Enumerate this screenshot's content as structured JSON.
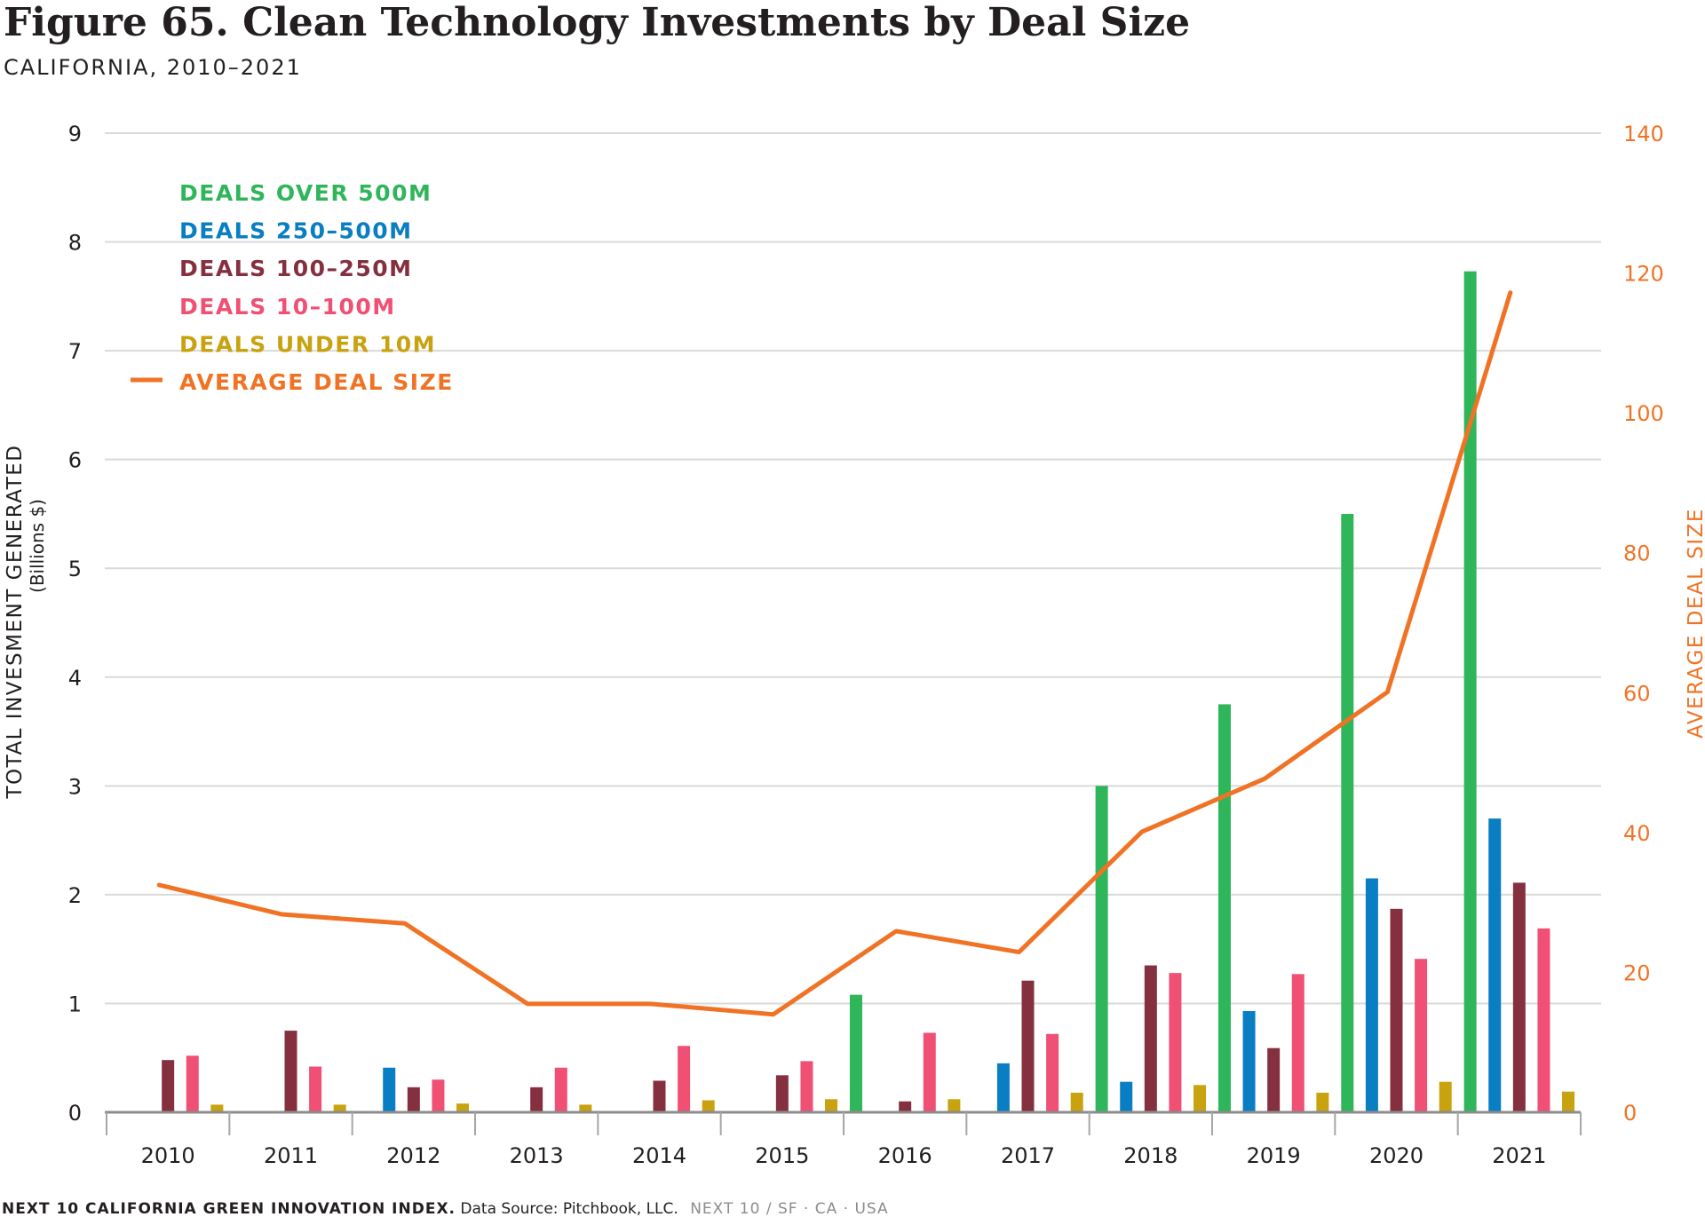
{
  "header": {
    "title": "Figure 65. Clean Technology Investments by Deal Size",
    "subtitle": "CALIFORNIA, 2010–2021"
  },
  "footer": {
    "org": "NEXT 10 CALIFORNIA GREEN INNOVATION INDEX.",
    "source": "Data Source: Pitchbook, LLC.",
    "brand": "NEXT 10  /  SF · CA · USA"
  },
  "chart_data": {
    "type": "bar",
    "title": "Figure 65. Clean Technology Investments by Deal Size",
    "subtitle": "CALIFORNIA, 2010–2021",
    "categories": [
      "2010",
      "2011",
      "2012",
      "2013",
      "2014",
      "2015",
      "2016",
      "2017",
      "2018",
      "2019",
      "2020",
      "2021"
    ],
    "ylabel": "TOTAL INVESMENT GENERATED",
    "ylabel_sub": "(Billions $)",
    "y2label": "AVERAGE DEAL SIZE",
    "ylim": [
      0,
      9
    ],
    "y2lim": [
      0,
      140
    ],
    "yticks": [
      0,
      1,
      2,
      3,
      4,
      5,
      6,
      7,
      8,
      9
    ],
    "y2ticks": [
      0,
      20,
      40,
      60,
      80,
      100,
      120,
      140
    ],
    "grid": true,
    "legend_position": "top-left",
    "series": [
      {
        "name": "DEALS OVER 500M",
        "type": "bar",
        "axis": "left",
        "color": "#2fb55a",
        "values": [
          null,
          null,
          null,
          null,
          null,
          null,
          1.08,
          null,
          3.0,
          3.75,
          5.5,
          7.73
        ]
      },
      {
        "name": "DEALS 250–500M",
        "type": "bar",
        "axis": "left",
        "color": "#0a7ec2",
        "values": [
          null,
          null,
          0.41,
          null,
          null,
          null,
          null,
          0.45,
          0.28,
          0.93,
          2.15,
          2.7
        ]
      },
      {
        "name": "DEALS 100–250M",
        "type": "bar",
        "axis": "left",
        "color": "#85303f",
        "values": [
          0.48,
          0.75,
          0.23,
          0.23,
          0.29,
          0.34,
          0.1,
          1.21,
          1.35,
          0.59,
          1.87,
          2.11
        ]
      },
      {
        "name": "DEALS 10–100M",
        "type": "bar",
        "axis": "left",
        "color": "#ef5073",
        "values": [
          0.52,
          0.42,
          0.3,
          0.41,
          0.61,
          0.47,
          0.73,
          0.72,
          1.28,
          1.27,
          1.41,
          1.69
        ]
      },
      {
        "name": "DEALS UNDER 10M",
        "type": "bar",
        "axis": "left",
        "color": "#c8a20f",
        "values": [
          0.07,
          0.07,
          0.08,
          0.07,
          0.11,
          0.12,
          0.12,
          0.18,
          0.25,
          0.18,
          0.28,
          0.19
        ]
      },
      {
        "name": "AVERAGE DEAL SIZE",
        "type": "line",
        "axis": "right",
        "color": "#f07325",
        "values": [
          32.5,
          28.3,
          27.0,
          15.5,
          15.5,
          14.0,
          25.9,
          22.9,
          40.1,
          47.7,
          60.1,
          117.2
        ]
      }
    ]
  }
}
